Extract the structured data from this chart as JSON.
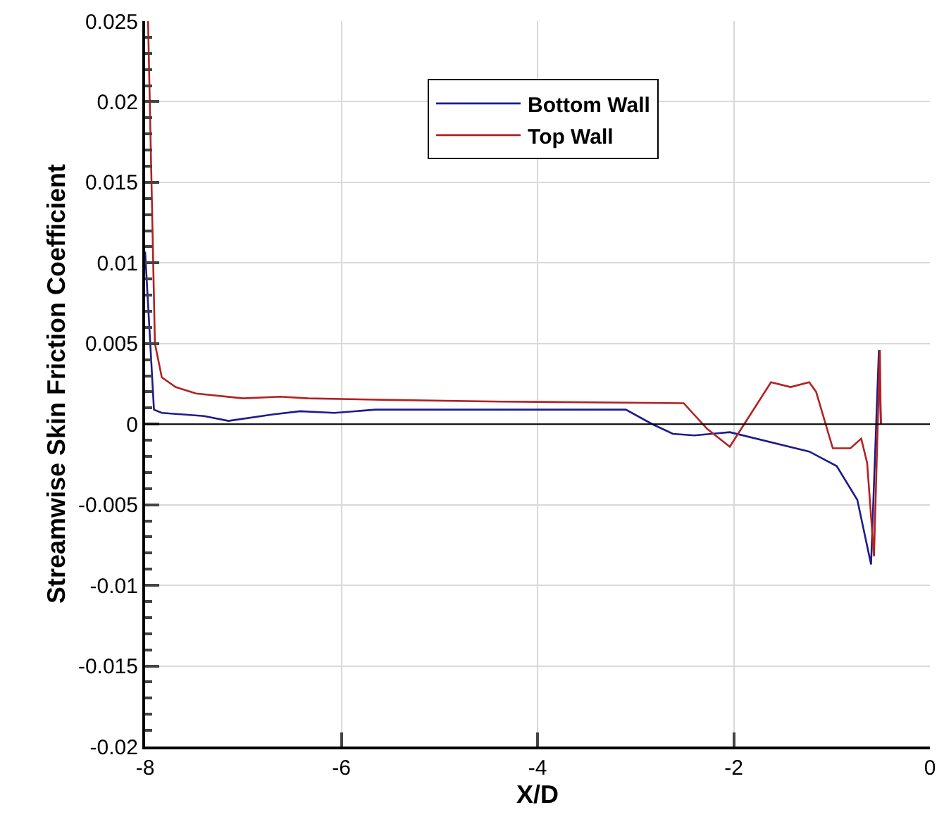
{
  "chart_data": {
    "type": "line",
    "xlabel": "X/D",
    "ylabel": "Streamwise Skin Friction Coefficient",
    "xlim": [
      -8,
      0
    ],
    "xticks": [
      -8,
      -6,
      -4,
      -2,
      0
    ],
    "ylim": [
      -0.02,
      0.025
    ],
    "yticks": [
      -0.02,
      -0.015,
      -0.01,
      -0.005,
      0,
      0.005,
      0.01,
      0.015,
      0.02,
      0.025
    ],
    "grid": true,
    "legend": "top right",
    "marker": "none",
    "line_style": "solid",
    "ref_lines": [
      {
        "axis": "y",
        "value": 0,
        "color": "#000000"
      }
    ],
    "series": [
      {
        "name": "Bottom Wall",
        "color": "#1c1c8c",
        "x": [
          -8.0,
          -7.91,
          -7.83,
          -7.4,
          -7.15,
          -6.7,
          -6.42,
          -6.07,
          -5.65,
          -4.37,
          -3.1,
          -2.83,
          -2.62,
          -2.4,
          -2.04,
          -1.23,
          -0.95,
          -0.74,
          -0.6,
          -0.52,
          -0.5
        ],
        "values": [
          0.0107,
          0.0009,
          0.0007,
          0.0005,
          0.0002,
          0.0006,
          0.0008,
          0.0007,
          0.0009,
          0.0009,
          0.0009,
          0.0,
          -0.0006,
          -0.0007,
          -0.0005,
          -0.0017,
          -0.0026,
          -0.0047,
          -0.0087,
          0.0046,
          0.0
        ]
      },
      {
        "name": "Top Wall",
        "color": "#b22222",
        "x": [
          -7.97,
          -7.9,
          -7.83,
          -7.69,
          -7.48,
          -7.0,
          -6.62,
          -6.34,
          -5.5,
          -4.37,
          -2.51,
          -2.27,
          -2.04,
          -1.62,
          -1.42,
          -1.23,
          -1.16,
          -0.99,
          -0.81,
          -0.7,
          -0.64,
          -0.57,
          -0.51,
          -0.5
        ],
        "values": [
          0.025,
          0.005,
          0.0029,
          0.0023,
          0.0019,
          0.0016,
          0.0017,
          0.0016,
          0.0015,
          0.0014,
          0.0013,
          -0.0003,
          -0.0014,
          0.0026,
          0.0023,
          0.0026,
          0.002,
          -0.0015,
          -0.0015,
          -0.0009,
          -0.0024,
          -0.0082,
          0.0046,
          0.0
        ]
      }
    ]
  }
}
